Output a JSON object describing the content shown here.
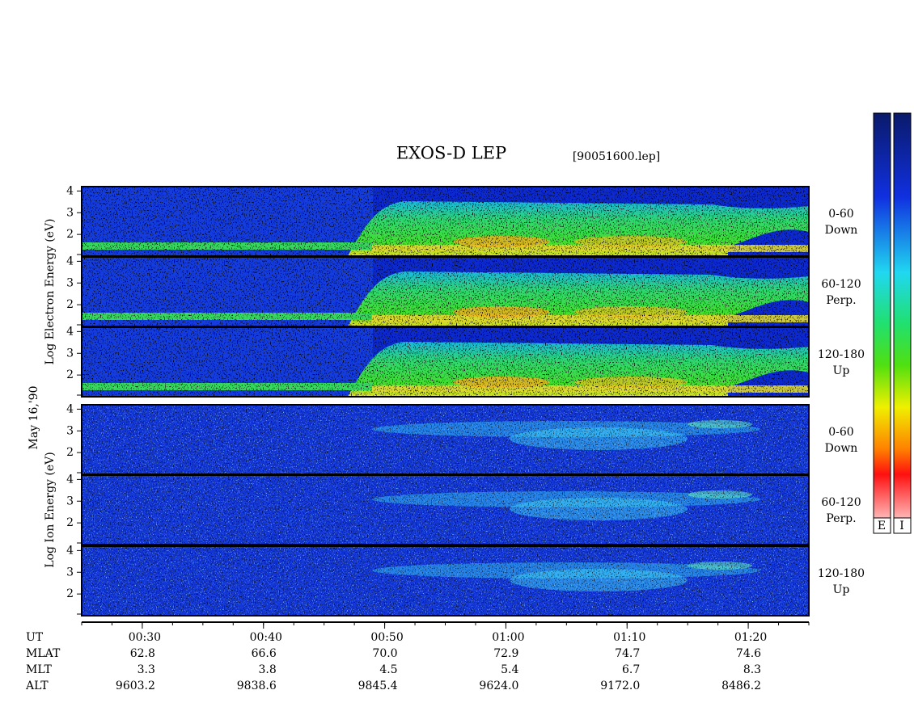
{
  "title": "EXOS-D LEP",
  "file": "[90051600.lep]",
  "date": "May 16,'90",
  "x_axis": {
    "xlim": [
      25,
      85
    ],
    "xticks": [
      {
        "value": 30,
        "label": "00:30"
      },
      {
        "value": 40,
        "label": "00:40"
      },
      {
        "value": 50,
        "label": "00:50"
      },
      {
        "value": 60,
        "label": "01:00"
      },
      {
        "value": 70,
        "label": "01:10"
      },
      {
        "value": 80,
        "label": "01:20"
      }
    ]
  },
  "electron": {
    "ylabel": "Log Electron Energy (eV)",
    "panels": [
      {
        "ylim": [
          1,
          4.2
        ],
        "yticks": [
          2,
          3,
          4
        ],
        "angle": "0-60",
        "direction": "Down"
      },
      {
        "ylim": [
          1,
          4.2
        ],
        "yticks": [
          2,
          3,
          4
        ],
        "angle": "60-120",
        "direction": "Perp."
      },
      {
        "ylim": [
          1,
          4.2
        ],
        "yticks": [
          2,
          3,
          4
        ],
        "angle": "120-180",
        "direction": "Up"
      }
    ]
  },
  "ion": {
    "ylabel": "Log Ion Energy (eV)",
    "panels": [
      {
        "ylim": [
          1,
          4.2
        ],
        "yticks": [
          2,
          3,
          4
        ],
        "angle": "0-60",
        "direction": "Down"
      },
      {
        "ylim": [
          1,
          4.2
        ],
        "yticks": [
          2,
          3,
          4
        ],
        "angle": "60-120",
        "direction": "Perp."
      },
      {
        "ylim": [
          1,
          4.2
        ],
        "yticks": [
          2,
          3,
          4
        ],
        "angle": "120-180",
        "direction": "Up"
      }
    ]
  },
  "ephemeris": {
    "x_label": "UT",
    "rows": [
      {
        "name": "MLAT",
        "values": [
          "62.8",
          "66.6",
          "70.0",
          "72.9",
          "74.7",
          "74.6"
        ]
      },
      {
        "name": "MLT",
        "values": [
          "3.3",
          "3.8",
          "4.5",
          "5.4",
          "6.7",
          "8.3"
        ]
      },
      {
        "name": "ALT",
        "values": [
          "9603.2",
          "9838.6",
          "9845.4",
          "9624.0",
          "9172.0",
          "8486.2"
        ]
      }
    ]
  },
  "colorbar": {
    "labels": [
      "E",
      "I"
    ]
  }
}
